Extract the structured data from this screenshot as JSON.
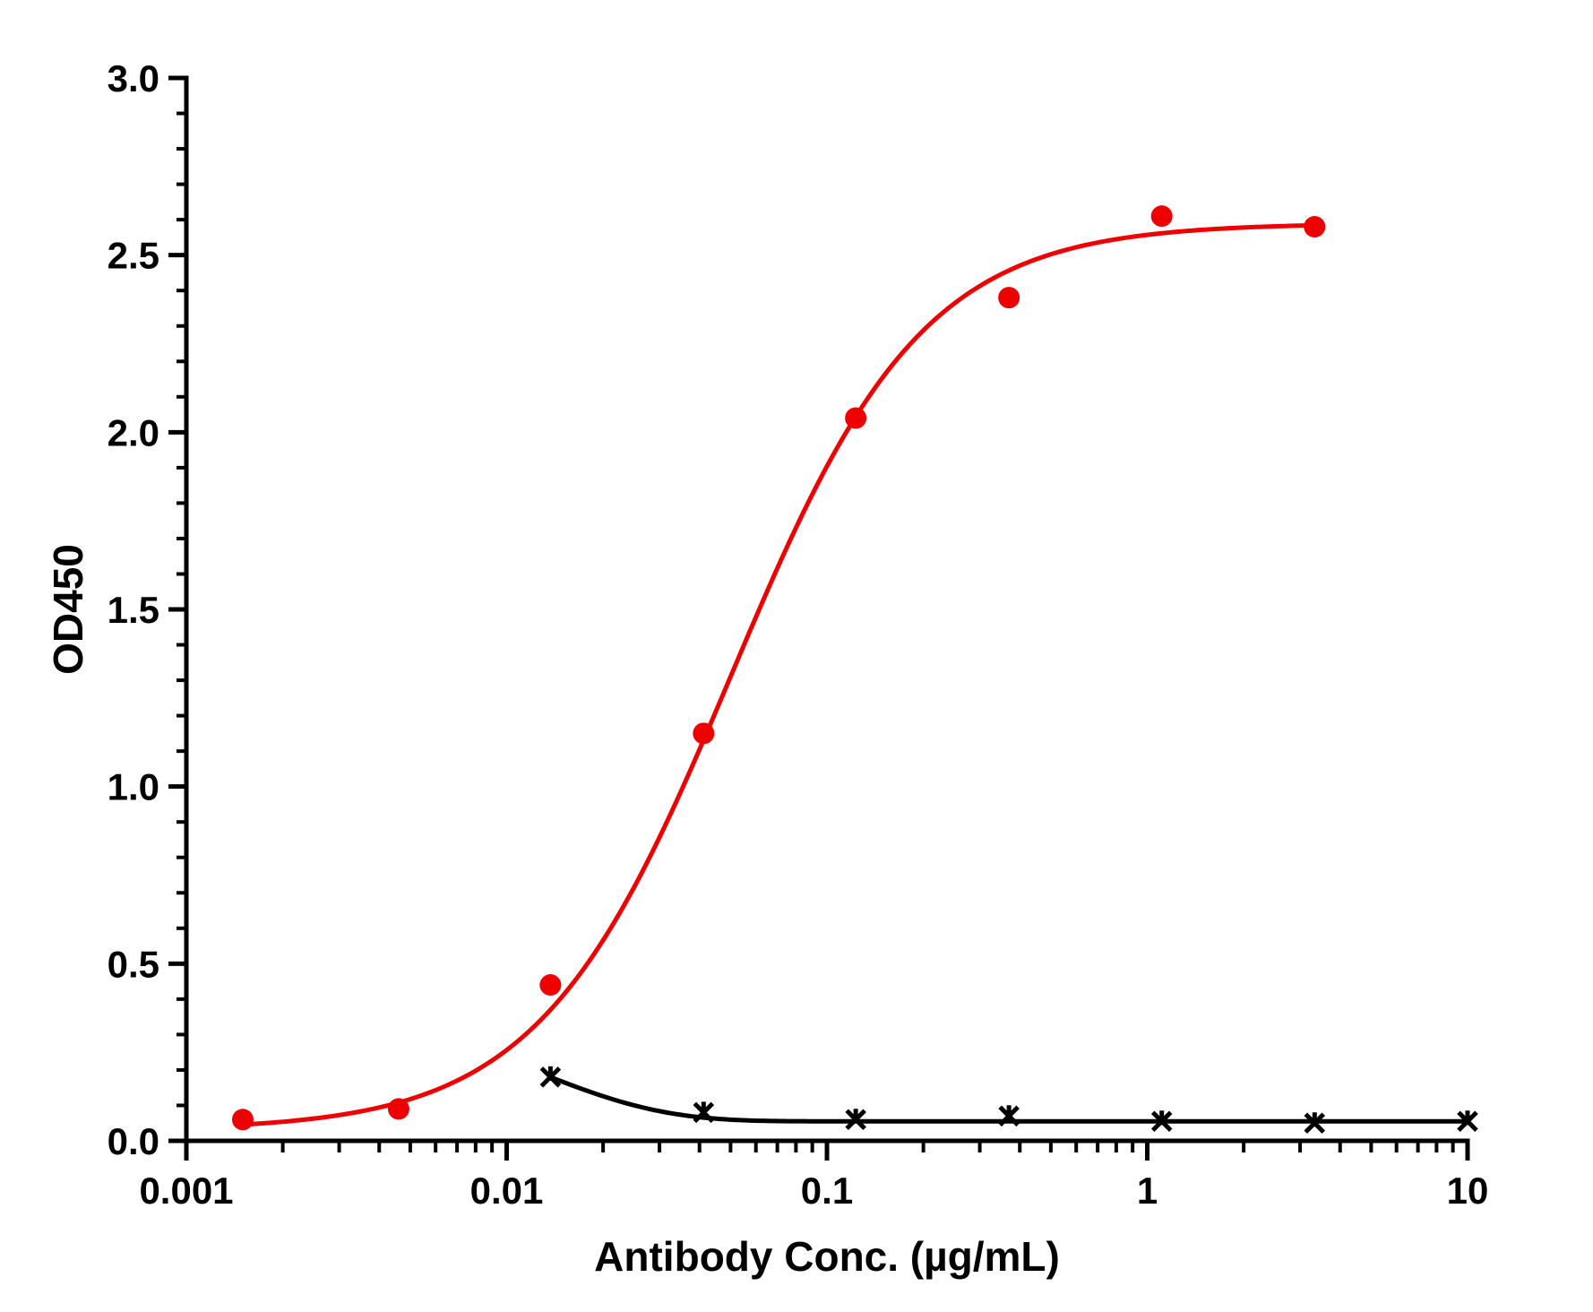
{
  "chart_data": {
    "type": "scatter",
    "title": "",
    "xlabel": "Antibody Conc. (µg/mL)",
    "ylabel": "OD450",
    "x_scale": "log",
    "xlim": [
      0.001,
      10
    ],
    "ylim": [
      0,
      3.0
    ],
    "x_ticks": [
      0.001,
      0.01,
      0.1,
      1,
      10
    ],
    "x_tick_labels": [
      "0.001",
      "0.01",
      "0.1",
      "1",
      "10"
    ],
    "y_ticks": [
      0,
      0.5,
      1.0,
      1.5,
      2.0,
      2.5,
      3.0
    ],
    "y_tick_labels": [
      "0.0",
      "0.5",
      "1.0",
      "1.5",
      "2.0",
      "2.5",
      "3.0"
    ],
    "grid": false,
    "legend": "none",
    "series": [
      {
        "color": "#ee0000",
        "marker": "circle",
        "fit": "4PL",
        "fit_params": {
          "bottom": 0.03,
          "top": 2.59,
          "ec50": 0.05,
          "hill": 1.45
        },
        "x": [
          0.0015,
          0.0046,
          0.0137,
          0.0412,
          0.123,
          0.37,
          1.11,
          3.33
        ],
        "y": [
          0.06,
          0.09,
          0.44,
          1.15,
          2.04,
          2.38,
          2.61,
          2.58
        ]
      },
      {
        "color": "#000000",
        "marker": "asterisk",
        "fit": "decay",
        "fit_params": {
          "plateau": 0.055,
          "amplitude": 0.125,
          "k": 90
        },
        "x": [
          0.0137,
          0.0412,
          0.123,
          0.37,
          1.11,
          3.33,
          10
        ],
        "y": [
          0.18,
          0.08,
          0.06,
          0.07,
          0.055,
          0.05,
          0.055
        ]
      }
    ]
  }
}
